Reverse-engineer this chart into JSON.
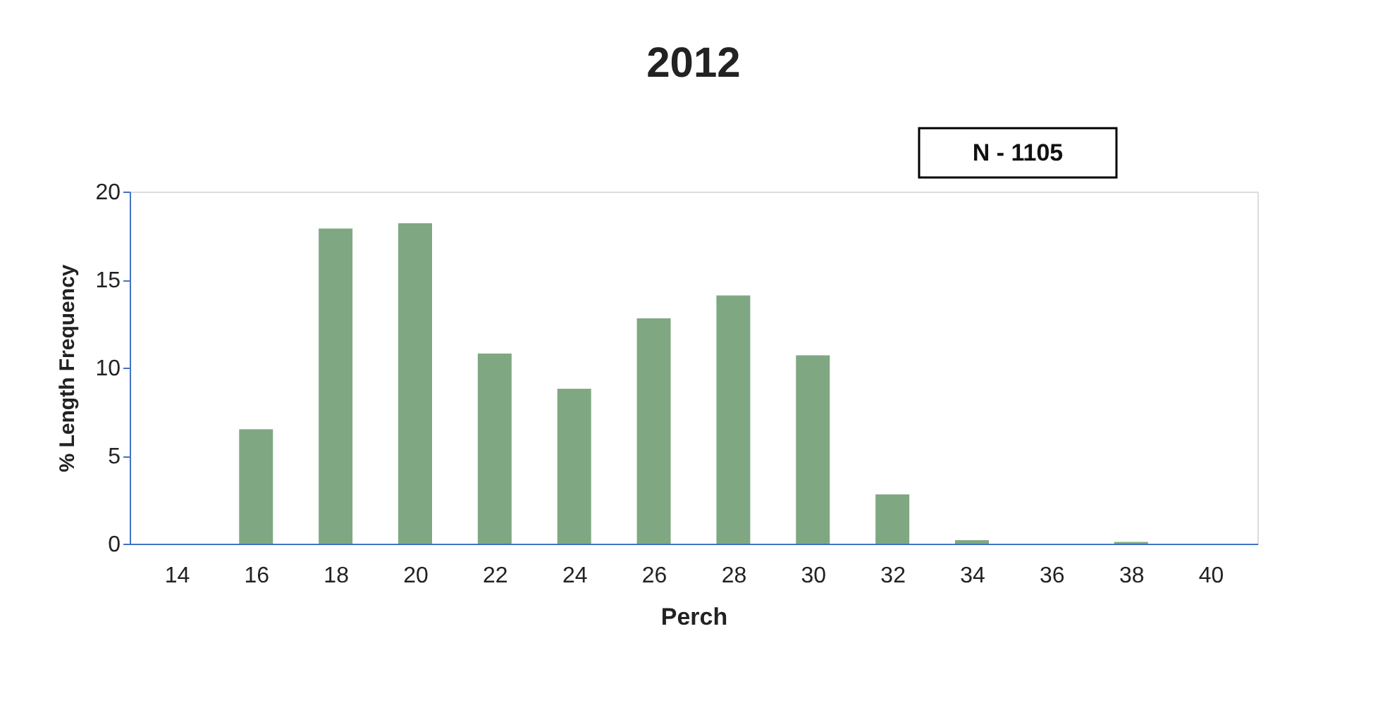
{
  "chart_data": {
    "type": "bar",
    "title": "2012",
    "xlabel": "Perch",
    "ylabel": "% Length Frequency",
    "categories": [
      "14",
      "16",
      "18",
      "20",
      "22",
      "24",
      "26",
      "28",
      "30",
      "32",
      "34",
      "36",
      "38",
      "40"
    ],
    "values": [
      0,
      6.5,
      17.9,
      18.2,
      10.8,
      8.8,
      12.8,
      14.1,
      10.7,
      2.8,
      0.2,
      0,
      0.1,
      0
    ],
    "color": "#7fa882",
    "ylim": [
      0,
      20
    ],
    "yticks": [
      0,
      5,
      10,
      15,
      20
    ],
    "grid": false,
    "annotations": [
      "N - 1105"
    ]
  }
}
